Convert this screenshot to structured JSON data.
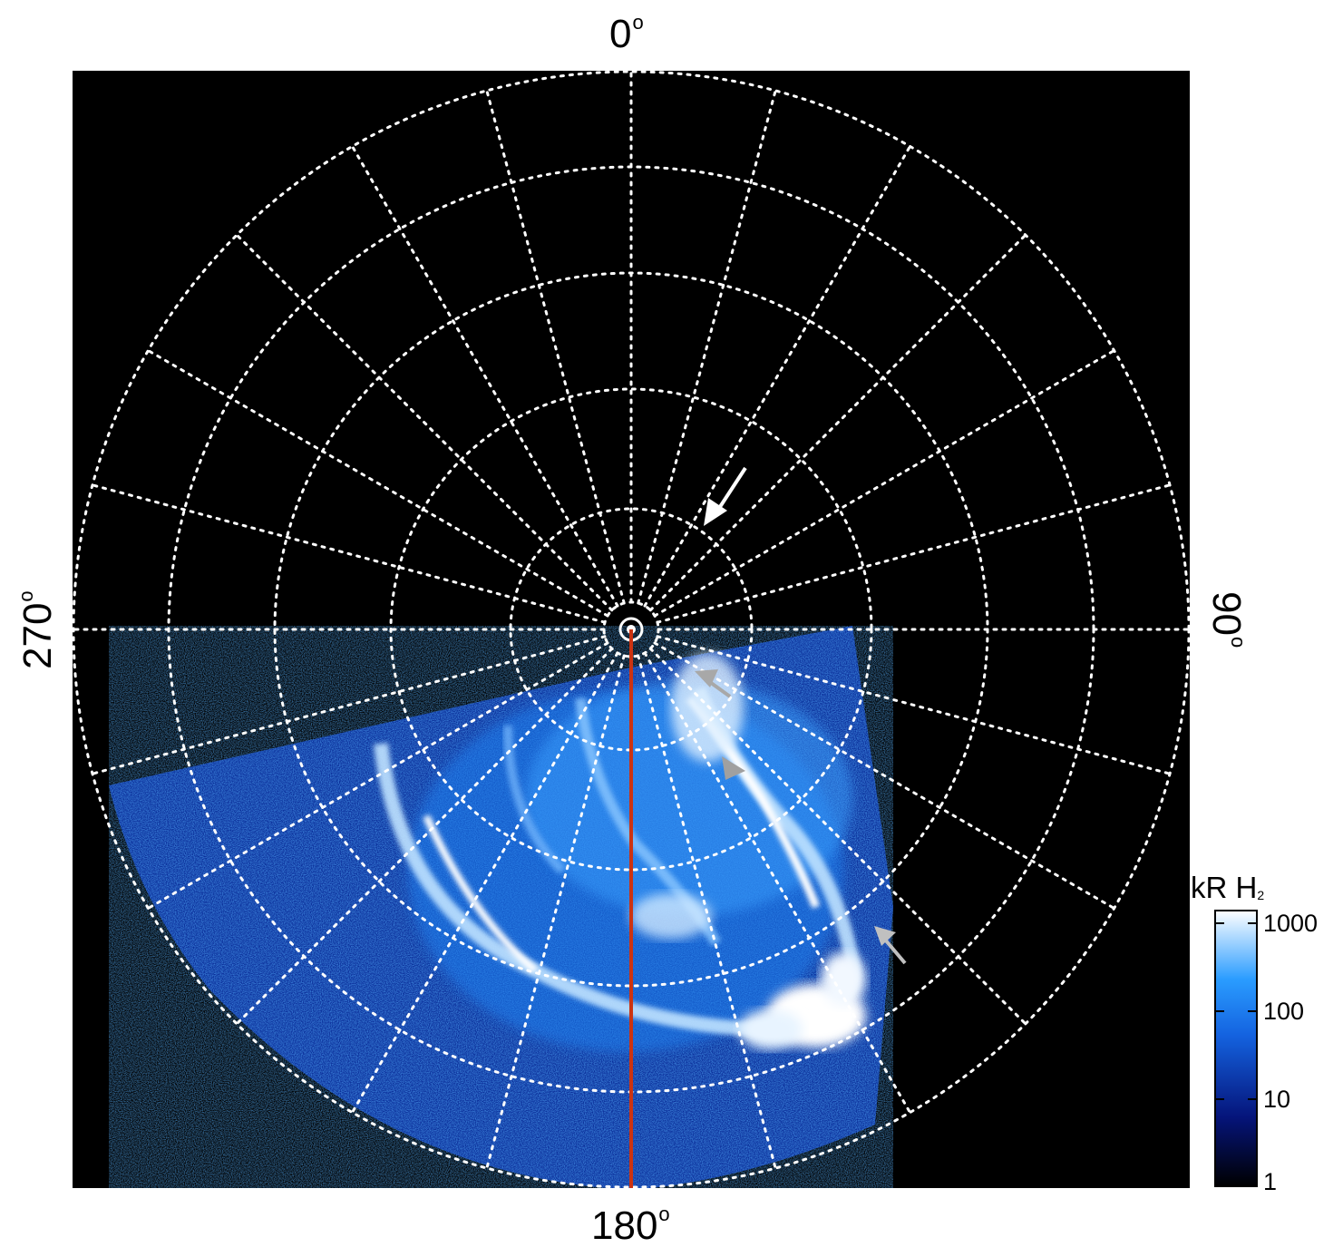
{
  "labels": {
    "top": "0",
    "bottom": "180",
    "left": "270",
    "right": "90",
    "degree_symbol": "o"
  },
  "colorbar": {
    "unit_main": "kR H",
    "unit_sub": "2",
    "ticks": [
      "1000",
      "100",
      "10",
      "1"
    ]
  },
  "colors": {
    "background": "#000000",
    "grid": "#ffffff",
    "meridian": "#cc3311",
    "aurora_low": "#0a1a6e",
    "aurora_mid": "#1e88ff",
    "aurora_high": "#f2f8ff",
    "arrow_white": "#ffffff",
    "arrow_gray": "#a0a0a0"
  }
}
